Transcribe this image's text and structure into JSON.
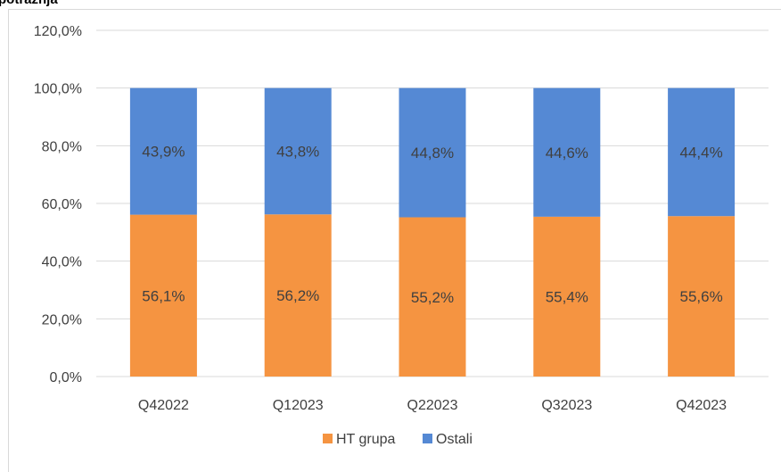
{
  "title_fragment": "potražnja",
  "chart_data": {
    "type": "bar",
    "stacked": true,
    "categories": [
      "Q42022",
      "Q12023",
      "Q22023",
      "Q32023",
      "Q42023"
    ],
    "series": [
      {
        "name": "HT grupa",
        "color": "#f59441",
        "values": [
          56.1,
          56.2,
          55.2,
          55.4,
          55.6
        ],
        "labels": [
          "56,1%",
          "56,2%",
          "55,2%",
          "55,4%",
          "55,6%"
        ]
      },
      {
        "name": "Ostali",
        "color": "#5589d4",
        "values": [
          43.9,
          43.8,
          44.8,
          44.6,
          44.4
        ],
        "labels": [
          "43,9%",
          "43,8%",
          "44,8%",
          "44,6%",
          "44,4%"
        ]
      }
    ],
    "ylim": [
      0,
      120
    ],
    "yticks": [
      0,
      20,
      40,
      60,
      80,
      100,
      120
    ],
    "ytick_labels": [
      "0,0%",
      "20,0%",
      "40,0%",
      "60,0%",
      "80,0%",
      "100,0%",
      "120,0%"
    ],
    "grid": true,
    "legend": "bottom-center",
    "gridline_color": "#d9d9d9",
    "label_color": "#404040"
  }
}
